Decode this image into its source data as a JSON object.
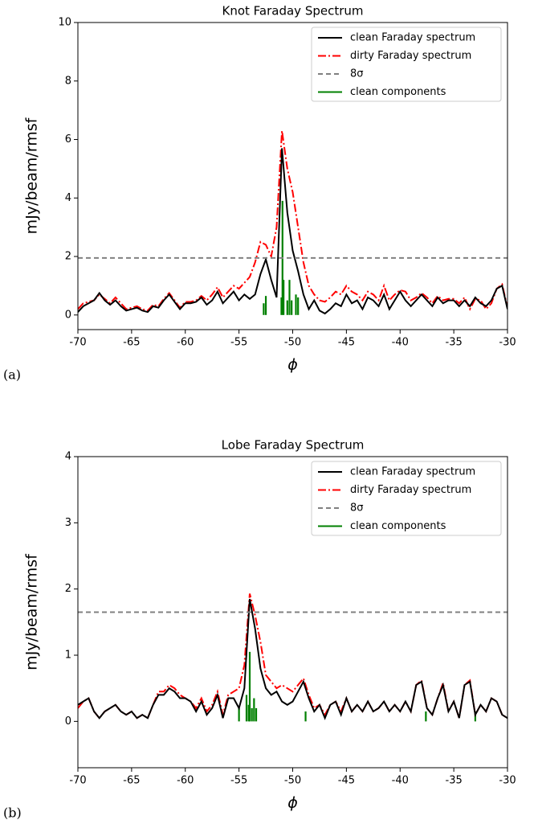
{
  "chart_data": [
    {
      "type": "line",
      "panel_label": "(a)",
      "title": "Knot Faraday Spectrum",
      "xlabel": "ϕ",
      "ylabel": "mJy/beam/rmsf",
      "xlim": [
        -70,
        -30
      ],
      "ylim": [
        -0.5,
        10
      ],
      "xticks": [
        -70,
        -65,
        -60,
        -55,
        -50,
        -45,
        -40,
        -35,
        -30
      ],
      "yticks": [
        0,
        2,
        4,
        6,
        8,
        10
      ],
      "legend": "upper right",
      "x": [
        -70,
        -69.5,
        -69,
        -68.5,
        -68,
        -67.5,
        -67,
        -66.5,
        -66,
        -65.5,
        -65,
        -64.5,
        -64,
        -63.5,
        -63,
        -62.5,
        -62,
        -61.5,
        -61,
        -60.5,
        -60,
        -59.5,
        -59,
        -58.5,
        -58,
        -57.5,
        -57,
        -56.5,
        -56,
        -55.5,
        -55,
        -54.5,
        -54,
        -53.5,
        -53,
        -52.5,
        -52,
        -51.5,
        -51,
        -50.5,
        -50,
        -49.5,
        -49,
        -48.5,
        -48,
        -47.5,
        -47,
        -46.5,
        -46,
        -45.5,
        -45,
        -44.5,
        -44,
        -43.5,
        -43,
        -42.5,
        -42,
        -41.5,
        -41,
        -40.5,
        -40,
        -39.5,
        -39,
        -38.5,
        -38,
        -37.5,
        -37,
        -36.5,
        -36,
        -35.5,
        -35,
        -34.5,
        -34,
        -33.5,
        -33,
        -32.5,
        -32,
        -31.5,
        -31,
        -30.5,
        -30
      ],
      "series": [
        {
          "name": "clean Faraday spectrum",
          "type": "line",
          "style": "solid",
          "color": "#000000",
          "values": [
            0.1,
            0.3,
            0.4,
            0.5,
            0.75,
            0.5,
            0.35,
            0.5,
            0.3,
            0.15,
            0.2,
            0.25,
            0.15,
            0.1,
            0.3,
            0.25,
            0.5,
            0.7,
            0.45,
            0.2,
            0.4,
            0.4,
            0.45,
            0.6,
            0.35,
            0.5,
            0.8,
            0.4,
            0.6,
            0.8,
            0.5,
            0.7,
            0.55,
            0.7,
            1.4,
            1.9,
            1.2,
            0.6,
            5.7,
            3.5,
            2.2,
            1.5,
            0.7,
            0.2,
            0.5,
            0.15,
            0.05,
            0.2,
            0.4,
            0.3,
            0.7,
            0.4,
            0.5,
            0.2,
            0.6,
            0.5,
            0.3,
            0.7,
            0.2,
            0.5,
            0.8,
            0.5,
            0.3,
            0.5,
            0.7,
            0.5,
            0.3,
            0.6,
            0.4,
            0.5,
            0.5,
            0.3,
            0.5,
            0.3,
            0.6,
            0.4,
            0.3,
            0.5,
            0.9,
            1.0,
            0.2
          ]
        },
        {
          "name": "dirty Faraday spectrum",
          "type": "line",
          "style": "dashdot",
          "color": "#ff0000",
          "values": [
            0.2,
            0.4,
            0.45,
            0.5,
            0.7,
            0.55,
            0.4,
            0.6,
            0.4,
            0.2,
            0.25,
            0.3,
            0.2,
            0.15,
            0.35,
            0.3,
            0.55,
            0.75,
            0.5,
            0.25,
            0.45,
            0.45,
            0.5,
            0.65,
            0.5,
            0.7,
            0.95,
            0.6,
            0.8,
            1.0,
            0.9,
            1.1,
            1.3,
            1.8,
            2.5,
            2.4,
            2.0,
            3.0,
            6.3,
            5.0,
            4.2,
            3.0,
            1.8,
            1.0,
            0.7,
            0.5,
            0.45,
            0.6,
            0.8,
            0.7,
            1.0,
            0.8,
            0.7,
            0.5,
            0.8,
            0.7,
            0.5,
            1.0,
            0.5,
            0.7,
            0.85,
            0.8,
            0.5,
            0.6,
            0.75,
            0.6,
            0.4,
            0.65,
            0.5,
            0.55,
            0.55,
            0.4,
            0.6,
            0.2,
            0.55,
            0.5,
            0.2,
            0.4,
            0.9,
            1.05,
            0.25
          ]
        },
        {
          "name": "8σ",
          "type": "hline",
          "style": "dashed",
          "color": "#808080",
          "value": 1.95
        },
        {
          "name": "clean components",
          "type": "stem",
          "style": "solid",
          "color": "#008000",
          "x": [
            -52.7,
            -52.5,
            -51.05,
            -50.95,
            -50.85,
            -50.5,
            -50.3,
            -50.1,
            -49.7,
            -49.5
          ],
          "values": [
            0.4,
            0.65,
            0.6,
            3.9,
            1.2,
            0.5,
            1.2,
            0.5,
            0.7,
            0.6
          ]
        }
      ]
    },
    {
      "type": "line",
      "panel_label": "(b)",
      "title": "Lobe Faraday Spectrum",
      "xlabel": "ϕ",
      "ylabel": "mJy/beam/rmsf",
      "xlim": [
        -70,
        -30
      ],
      "ylim": [
        -0.7,
        4
      ],
      "xticks": [
        -70,
        -65,
        -60,
        -55,
        -50,
        -45,
        -40,
        -35,
        -30
      ],
      "yticks": [
        0,
        1,
        2,
        3,
        4
      ],
      "legend": "upper right",
      "x": [
        -70,
        -69.5,
        -69,
        -68.5,
        -68,
        -67.5,
        -67,
        -66.5,
        -66,
        -65.5,
        -65,
        -64.5,
        -64,
        -63.5,
        -63,
        -62.5,
        -62,
        -61.5,
        -61,
        -60.5,
        -60,
        -59.5,
        -59,
        -58.5,
        -58,
        -57.5,
        -57,
        -56.5,
        -56,
        -55.5,
        -55,
        -54.5,
        -54,
        -53.5,
        -53,
        -52.5,
        -52,
        -51.5,
        -51,
        -50.5,
        -50,
        -49.5,
        -49,
        -48.5,
        -48,
        -47.5,
        -47,
        -46.5,
        -46,
        -45.5,
        -45,
        -44.5,
        -44,
        -43.5,
        -43,
        -42.5,
        -42,
        -41.5,
        -41,
        -40.5,
        -40,
        -39.5,
        -39,
        -38.5,
        -38,
        -37.5,
        -37,
        -36.5,
        -36,
        -35.5,
        -35,
        -34.5,
        -34,
        -33.5,
        -33,
        -32.5,
        -32,
        -31.5,
        -31,
        -30.5,
        -30
      ],
      "series": [
        {
          "name": "clean Faraday spectrum",
          "type": "line",
          "style": "solid",
          "color": "#000000",
          "values": [
            0.25,
            0.3,
            0.35,
            0.15,
            0.05,
            0.15,
            0.2,
            0.25,
            0.15,
            0.1,
            0.15,
            0.05,
            0.1,
            0.05,
            0.25,
            0.4,
            0.4,
            0.5,
            0.45,
            0.35,
            0.35,
            0.3,
            0.15,
            0.3,
            0.1,
            0.2,
            0.4,
            0.05,
            0.35,
            0.35,
            0.2,
            0.5,
            1.85,
            1.4,
            0.8,
            0.5,
            0.4,
            0.45,
            0.3,
            0.25,
            0.3,
            0.45,
            0.6,
            0.35,
            0.15,
            0.25,
            0.05,
            0.25,
            0.3,
            0.1,
            0.35,
            0.15,
            0.25,
            0.15,
            0.3,
            0.15,
            0.2,
            0.3,
            0.15,
            0.25,
            0.15,
            0.3,
            0.15,
            0.55,
            0.6,
            0.2,
            0.1,
            0.35,
            0.55,
            0.15,
            0.3,
            0.05,
            0.55,
            0.6,
            0.1,
            0.25,
            0.15,
            0.35,
            0.3,
            0.1,
            0.05
          ]
        },
        {
          "name": "dirty Faraday spectrum",
          "type": "line",
          "style": "dashdot",
          "color": "#ff0000",
          "values": [
            0.2,
            0.3,
            0.35,
            0.15,
            0.05,
            0.15,
            0.2,
            0.25,
            0.15,
            0.1,
            0.15,
            0.05,
            0.1,
            0.05,
            0.25,
            0.45,
            0.45,
            0.55,
            0.5,
            0.4,
            0.35,
            0.3,
            0.2,
            0.35,
            0.15,
            0.25,
            0.45,
            0.1,
            0.4,
            0.45,
            0.5,
            0.85,
            1.93,
            1.6,
            1.2,
            0.7,
            0.6,
            0.5,
            0.55,
            0.5,
            0.45,
            0.55,
            0.65,
            0.4,
            0.2,
            0.25,
            0.1,
            0.25,
            0.3,
            0.15,
            0.35,
            0.15,
            0.25,
            0.15,
            0.3,
            0.15,
            0.2,
            0.3,
            0.15,
            0.25,
            0.15,
            0.3,
            0.15,
            0.55,
            0.62,
            0.2,
            0.1,
            0.35,
            0.58,
            0.15,
            0.3,
            0.05,
            0.55,
            0.62,
            0.1,
            0.25,
            0.15,
            0.35,
            0.3,
            0.1,
            0.05
          ]
        },
        {
          "name": "8σ",
          "type": "hline",
          "style": "dashed",
          "color": "#808080",
          "value": 1.65
        },
        {
          "name": "clean components",
          "type": "stem",
          "style": "solid",
          "color": "#008000",
          "x": [
            -55,
            -54.3,
            -54.1,
            -54.0,
            -53.8,
            -53.6,
            -53.4,
            -48.8,
            -37.6,
            -33
          ],
          "values": [
            0.2,
            0.4,
            0.25,
            1.05,
            0.2,
            0.35,
            0.2,
            0.15,
            0.15,
            0.15
          ]
        }
      ]
    }
  ]
}
